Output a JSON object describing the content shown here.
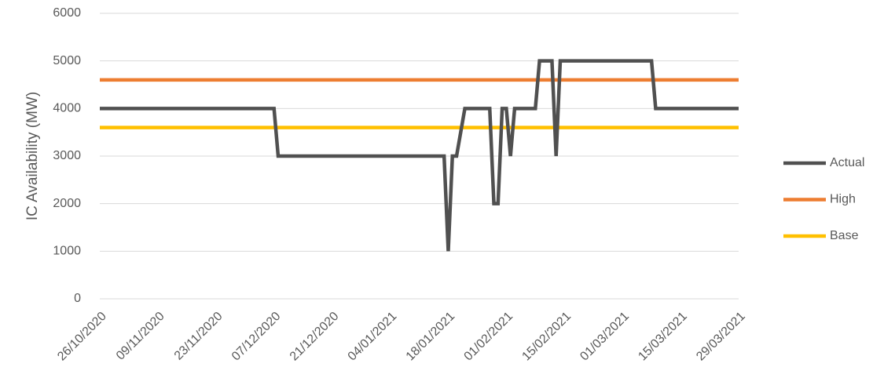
{
  "chart_data": {
    "type": "line",
    "y_label": "IC Availability (MW)",
    "xlim": [
      "26/10/2020",
      "29/03/2021"
    ],
    "xticks": [
      "26/10/2020",
      "09/11/2020",
      "23/11/2020",
      "07/12/2020",
      "21/12/2020",
      "04/01/2021",
      "18/01/2021",
      "01/02/2021",
      "15/02/2021",
      "01/03/2021",
      "15/03/2021",
      "29/03/2021"
    ],
    "ylim": [
      0,
      6000
    ],
    "yticks": [
      0,
      1000,
      2000,
      3000,
      4000,
      5000,
      6000
    ],
    "grid": true,
    "legend": "right",
    "series": [
      {
        "name": "Actual",
        "color": "#505050",
        "x": [
          "26/10/2020",
          "07/12/2020",
          "08/12/2020",
          "17/01/2021",
          "18/01/2021",
          "19/01/2021",
          "20/01/2021",
          "22/01/2021",
          "28/01/2021",
          "29/01/2021",
          "30/01/2021",
          "31/01/2021",
          "01/02/2021",
          "02/02/2021",
          "03/02/2021",
          "08/02/2021",
          "09/02/2021",
          "12/02/2021",
          "13/02/2021",
          "14/02/2021",
          "08/03/2021",
          "09/03/2021",
          "29/03/2021"
        ],
        "values": [
          4000,
          4000,
          3000,
          3000,
          1000,
          3000,
          3000,
          4000,
          4000,
          2000,
          2000,
          4000,
          4000,
          3000,
          4000,
          4000,
          5000,
          5000,
          3000,
          5000,
          5000,
          4000,
          4000
        ]
      },
      {
        "name": "High",
        "color": "#ed7d31",
        "x": [
          "26/10/2020",
          "29/03/2021"
        ],
        "values": [
          4600,
          4600
        ]
      },
      {
        "name": "Base",
        "color": "#ffc000",
        "x": [
          "26/10/2020",
          "29/03/2021"
        ],
        "values": [
          3600,
          3600
        ]
      }
    ]
  }
}
